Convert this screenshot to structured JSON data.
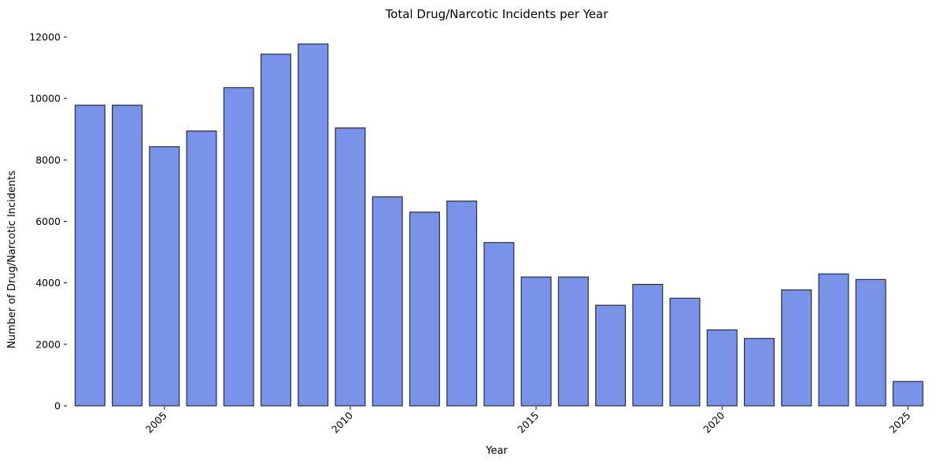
{
  "chart_data": {
    "type": "bar",
    "title": "Total Drug/Narcotic Incidents per Year",
    "xlabel": "Year",
    "ylabel": "Number of Drug/Narcotic Incidents",
    "x": [
      2003,
      2004,
      2005,
      2006,
      2007,
      2008,
      2009,
      2010,
      2011,
      2012,
      2013,
      2014,
      2015,
      2016,
      2017,
      2018,
      2019,
      2020,
      2021,
      2022,
      2023,
      2024,
      2025
    ],
    "values": [
      9780,
      9780,
      8430,
      8940,
      10350,
      11440,
      11770,
      9040,
      6800,
      6300,
      6660,
      5310,
      4190,
      4190,
      3270,
      3950,
      3500,
      2470,
      2190,
      3770,
      4290,
      4110,
      790
    ],
    "xlim": [
      2002.4,
      2025.5
    ],
    "ylim": [
      0,
      12000
    ],
    "x_ticks": [
      2005,
      2010,
      2015,
      2020,
      2025
    ],
    "x_tick_labels": [
      "2005",
      "2010",
      "2015",
      "2020",
      "2025"
    ],
    "y_ticks": [
      0,
      2000,
      4000,
      6000,
      8000,
      10000,
      12000
    ],
    "y_tick_labels": [
      "0",
      "2000",
      "4000",
      "6000",
      "8000",
      "10000",
      "12000"
    ],
    "bar_color": "#7893e8",
    "edge_color": "#2b2b3a",
    "grid": false,
    "legend": "none"
  }
}
